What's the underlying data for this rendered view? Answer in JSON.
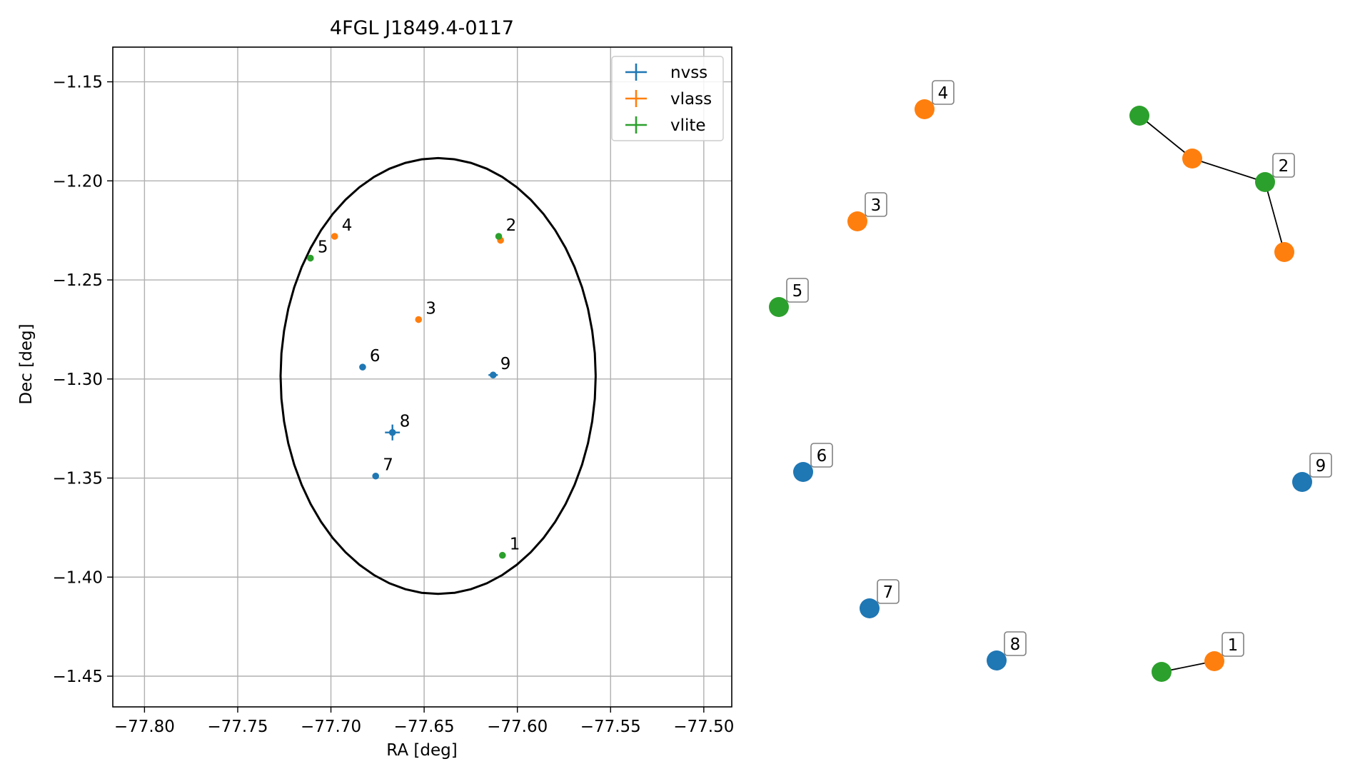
{
  "chart_data": [
    {
      "type": "scatter",
      "title": "4FGL J1849.4-0117",
      "xlabel": "RA [deg]",
      "ylabel": "Dec [deg]",
      "xlim": [
        -77.817,
        -77.485
      ],
      "ylim": [
        -1.4655,
        -1.1325
      ],
      "xticks": [
        -77.8,
        -77.75,
        -77.7,
        -77.65,
        -77.6,
        -77.55,
        -77.5
      ],
      "xtick_labels": [
        "−77.80",
        "−77.75",
        "−77.70",
        "−77.65",
        "−77.60",
        "−77.55",
        "−77.50"
      ],
      "yticks": [
        -1.15,
        -1.2,
        -1.25,
        -1.3,
        -1.35,
        -1.4,
        -1.45
      ],
      "ytick_labels": [
        "−1.15",
        "−1.20",
        "−1.25",
        "−1.30",
        "−1.35",
        "−1.40",
        "−1.45"
      ],
      "grid": true,
      "legend": {
        "position": "top-right",
        "entries": [
          "nvss",
          "vlass",
          "vlite"
        ]
      },
      "ellipse": {
        "center_ra": -77.6425,
        "center_dec": -1.2985,
        "ra_halfwidth": 0.0845,
        "dec_halfheight": 0.11,
        "color": "#000000"
      },
      "series": [
        {
          "name": "nvss",
          "color": "#1f77b4",
          "points": [
            {
              "label": "6",
              "ra": -77.683,
              "dec": -1.294
            },
            {
              "label": "9",
              "ra": -77.613,
              "dec": -1.298,
              "ra_err": 0.0025
            },
            {
              "label": "8",
              "ra": -77.667,
              "dec": -1.327,
              "ra_err": 0.004,
              "dec_err": 0.004
            },
            {
              "label": "7",
              "ra": -77.676,
              "dec": -1.349
            }
          ]
        },
        {
          "name": "vlass",
          "color": "#ff7f0e",
          "points": [
            {
              "label": "4",
              "ra": -77.698,
              "dec": -1.228
            },
            {
              "label": "3",
              "ra": -77.653,
              "dec": -1.27
            },
            {
              "label": "",
              "ra": -77.609,
              "dec": -1.23
            }
          ]
        },
        {
          "name": "vlite",
          "color": "#2ca02c",
          "points": [
            {
              "label": "5",
              "ra": -77.711,
              "dec": -1.239
            },
            {
              "label": "2",
              "ra": -77.61,
              "dec": -1.228
            },
            {
              "label": "1",
              "ra": -77.608,
              "dec": -1.389
            }
          ]
        }
      ]
    },
    {
      "type": "network",
      "nodes": [
        {
          "id": "vlass-4",
          "label": "4",
          "series": "vlass"
        },
        {
          "id": "vlite-2a",
          "label": "",
          "series": "vlite"
        },
        {
          "id": "vlass-2",
          "label": "",
          "series": "vlass"
        },
        {
          "id": "vlite-2b",
          "label": "2",
          "series": "vlite"
        },
        {
          "id": "vlass-2b",
          "label": "",
          "series": "vlass"
        },
        {
          "id": "vlass-3",
          "label": "3",
          "series": "vlass"
        },
        {
          "id": "vlite-5",
          "label": "5",
          "series": "vlite"
        },
        {
          "id": "nvss-6",
          "label": "6",
          "series": "nvss"
        },
        {
          "id": "nvss-9",
          "label": "9",
          "series": "nvss"
        },
        {
          "id": "nvss-7",
          "label": "7",
          "series": "nvss"
        },
        {
          "id": "nvss-8",
          "label": "8",
          "series": "nvss"
        },
        {
          "id": "vlite-1",
          "label": "",
          "series": "vlite"
        },
        {
          "id": "vlass-1",
          "label": "1",
          "series": "vlass"
        }
      ],
      "edges": [
        [
          "vlite-2a",
          "vlass-2"
        ],
        [
          "vlass-2",
          "vlite-2b"
        ],
        [
          "vlite-2b",
          "vlass-2b"
        ],
        [
          "vlite-1",
          "vlass-1"
        ]
      ]
    }
  ]
}
